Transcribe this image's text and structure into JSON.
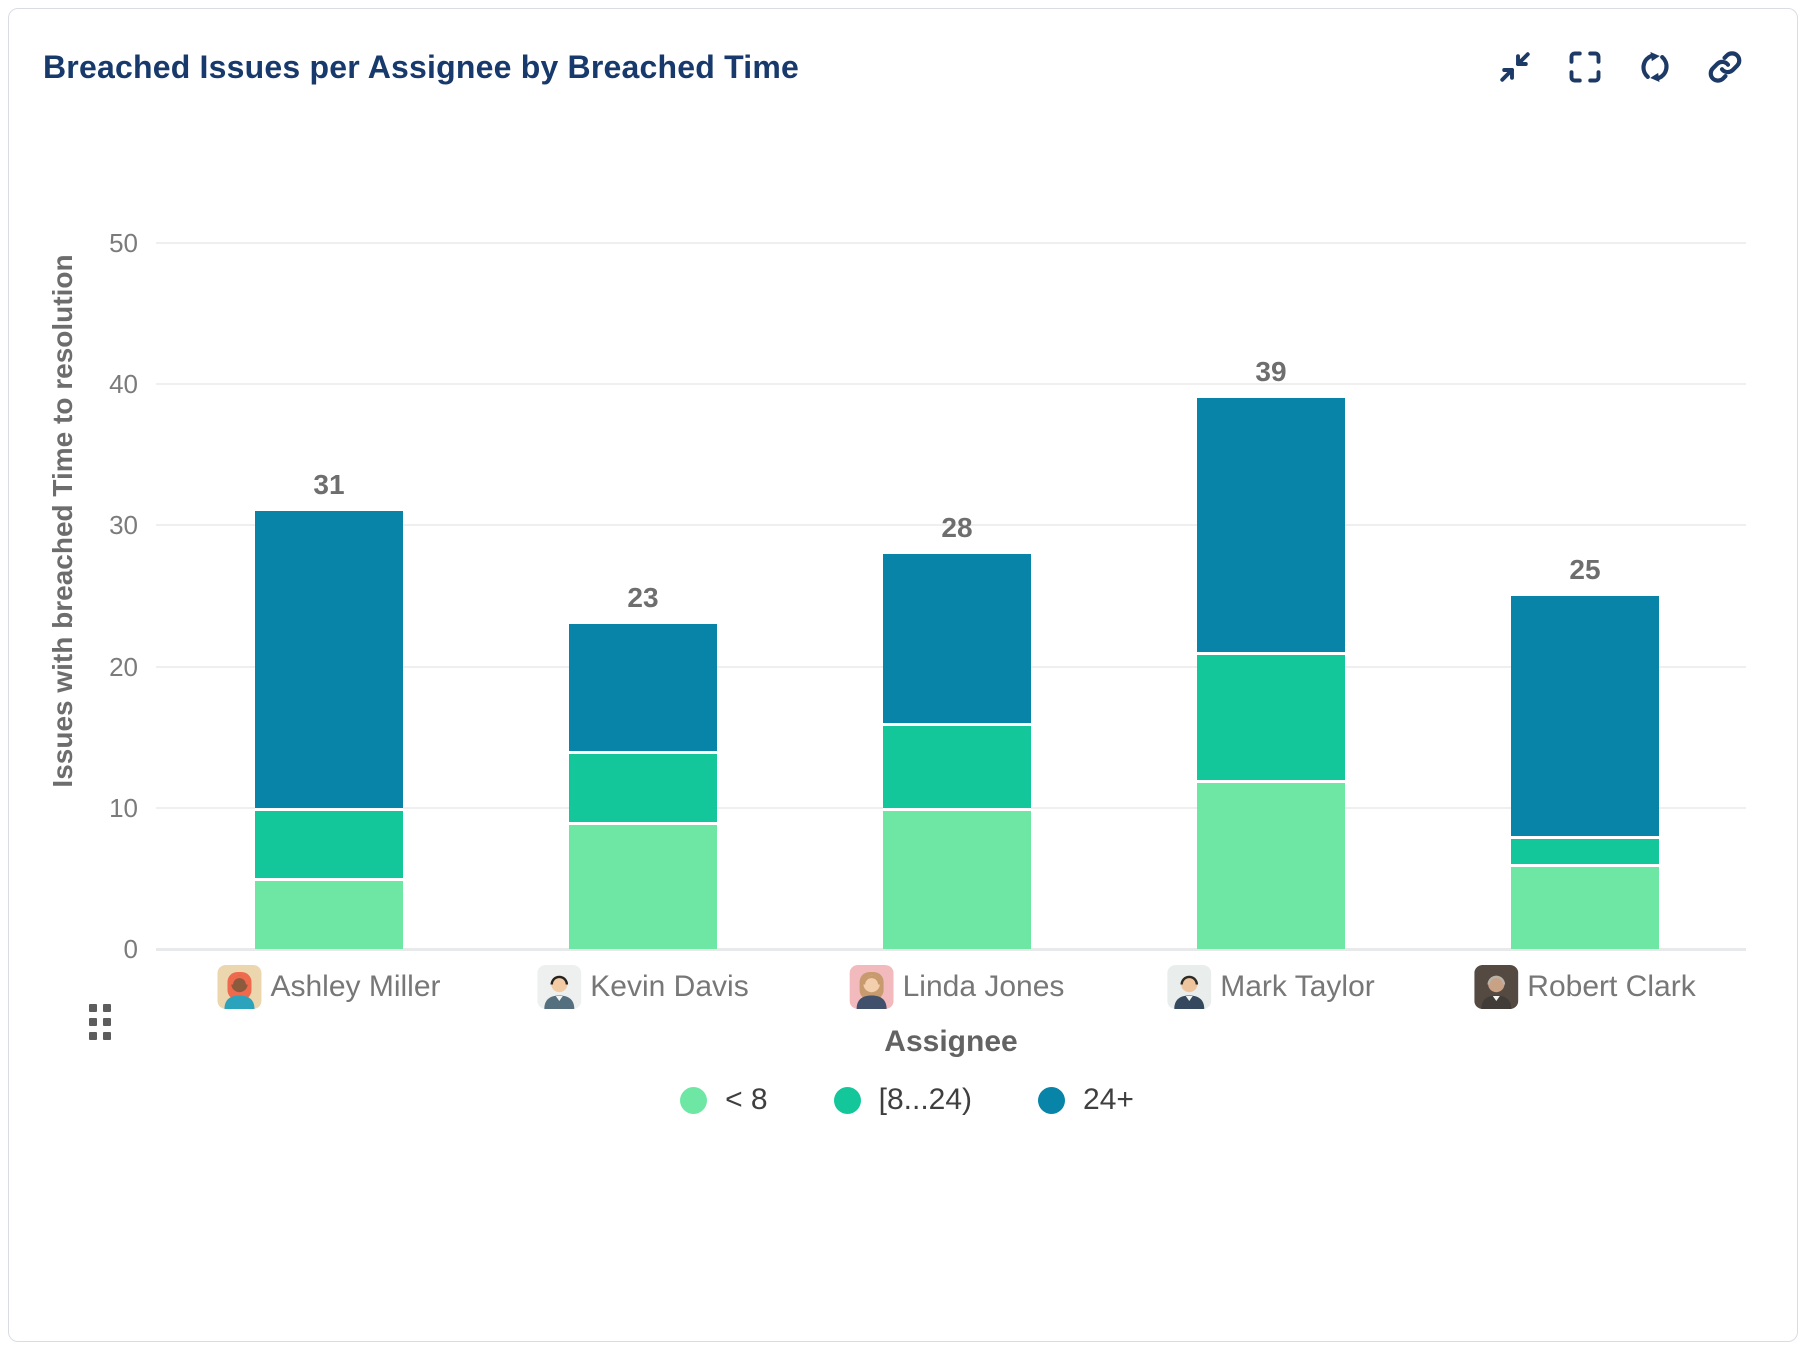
{
  "header": {
    "title": "Breached Issues per Assignee by Breached Time"
  },
  "toolbar": {
    "icons": [
      "collapse",
      "fullscreen",
      "refresh",
      "link"
    ]
  },
  "chart_data": {
    "type": "bar",
    "stacked": true,
    "title": "Breached Issues per Assignee by Breached Time",
    "xlabel": "Assignee",
    "ylabel": "Issues with breached Time to resolution",
    "ylim": [
      0,
      50
    ],
    "y_ticks": [
      0,
      10,
      20,
      30,
      40,
      50
    ],
    "grid": true,
    "legend_position": "bottom",
    "value_labels": "total-above-bar",
    "categories": [
      "Ashley Miller",
      "Kevin Davis",
      "Linda Jones",
      "Mark Taylor",
      "Robert Clark"
    ],
    "series": [
      {
        "name": "< 8",
        "color": "#6fe7a4",
        "values": [
          5,
          9,
          10,
          12,
          6
        ]
      },
      {
        "name": "[8...24)",
        "color": "#14c79b",
        "values": [
          5,
          5,
          6,
          9,
          2
        ]
      },
      {
        "name": "24+",
        "color": "#0784a8",
        "values": [
          21,
          9,
          12,
          18,
          17
        ]
      }
    ],
    "totals": [
      31,
      23,
      28,
      39,
      25
    ]
  },
  "avatars": [
    {
      "bg": "#ecd6ad",
      "hair": "#ef6a4d",
      "skin": "#8c5a3c",
      "shirt": "#2ba3bd",
      "style": "long"
    },
    {
      "bg": "#eef0ef",
      "hair": "#26221f",
      "skin": "#f2cba4",
      "shirt": "#54707e",
      "style": "suit"
    },
    {
      "bg": "#f2babd",
      "hair": "#c79b6e",
      "skin": "#f4cfae",
      "shirt": "#41506b",
      "style": "long"
    },
    {
      "bg": "#e9edec",
      "hair": "#2e2a26",
      "skin": "#eec49d",
      "shirt": "#35495e",
      "style": "suit"
    },
    {
      "bg": "#554a41",
      "hair": "#b9b3a9",
      "skin": "#c9a285",
      "shirt": "#413c37",
      "style": "suit"
    }
  ],
  "colors": {
    "title": "#17396b",
    "icon": "#1d3a66",
    "tick_text": "#7b7b7b",
    "total_label": "#6e6e6e",
    "category_text": "#777777",
    "axis_title": "#636363",
    "legend_text": "#3f3f3f",
    "gridline": "#efefef",
    "baseline": "#e7e9eb",
    "card_border": "#d9dde3"
  }
}
